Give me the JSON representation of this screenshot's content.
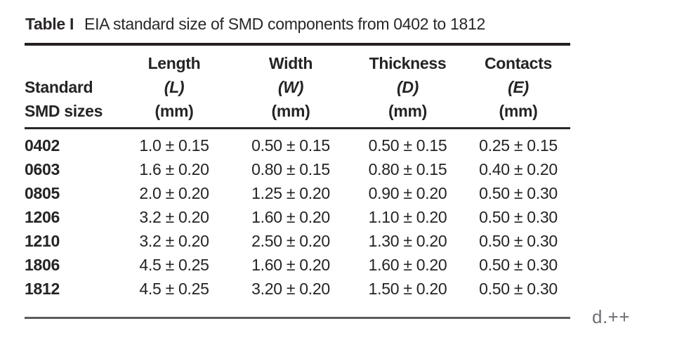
{
  "table": {
    "label": "Table I",
    "caption": "EIA standard size of SMD components from 0402 to 1812",
    "columns": [
      {
        "line1": "Standard",
        "line2": "SMD sizes"
      },
      {
        "name": "Length",
        "symbol": "(L)",
        "unit": "(mm)"
      },
      {
        "name": "Width",
        "symbol": "(W)",
        "unit": "(mm)"
      },
      {
        "name": "Thickness",
        "symbol": "(D)",
        "unit": "(mm)"
      },
      {
        "name": "Contacts",
        "symbol": "(E)",
        "unit": "(mm)"
      }
    ],
    "rows": [
      {
        "size": "0402",
        "length": "1.0 ± 0.15",
        "width": "0.50 ± 0.15",
        "thickness": "0.50 ± 0.15",
        "contacts": "0.25 ± 0.15"
      },
      {
        "size": "0603",
        "length": "1.6 ± 0.20",
        "width": "0.80 ± 0.15",
        "thickness": "0.80 ± 0.15",
        "contacts": "0.40 ± 0.20"
      },
      {
        "size": "0805",
        "length": "2.0 ± 0.20",
        "width": "1.25 ± 0.20",
        "thickness": "0.90 ± 0.20",
        "contacts": "0.50 ± 0.30"
      },
      {
        "size": "1206",
        "length": "3.2 ± 0.20",
        "width": "1.60 ± 0.20",
        "thickness": "1.10 ± 0.20",
        "contacts": "0.50 ± 0.30"
      },
      {
        "size": "1210",
        "length": "3.2 ± 0.20",
        "width": "2.50 ± 0.20",
        "thickness": "1.30 ± 0.20",
        "contacts": "0.50 ± 0.30"
      },
      {
        "size": "1806",
        "length": "4.5 ± 0.25",
        "width": "1.60 ± 0.20",
        "thickness": "1.60 ± 0.20",
        "contacts": "0.50 ± 0.30"
      },
      {
        "size": "1812",
        "length": "4.5 ± 0.25",
        "width": "3.20 ± 0.20",
        "thickness": "1.50 ± 0.20",
        "contacts": "0.50 ± 0.30"
      }
    ],
    "colors": {
      "text": "#262326",
      "rule_dark": "#241f21",
      "rule_gray": "#5a5b5e",
      "note_gray": "#6d7075"
    }
  },
  "annotation": {
    "text": "d.++"
  }
}
